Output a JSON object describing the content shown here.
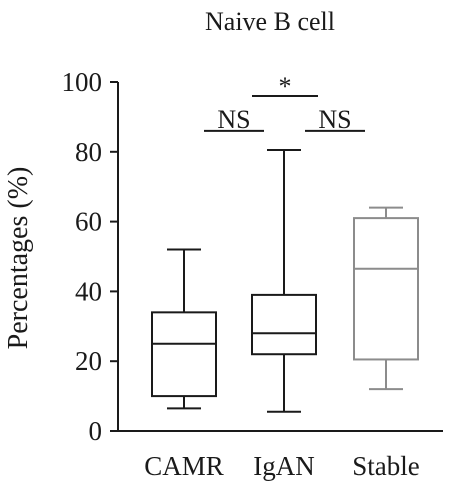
{
  "chart_data": {
    "type": "box",
    "title": "Naive B cell",
    "ylabel": "Percentages (%)",
    "xlabel": "",
    "ylim": [
      0,
      100
    ],
    "yticks": [
      "0",
      "20",
      "40",
      "60",
      "80",
      "100"
    ],
    "grid": false,
    "categories": [
      "CAMR",
      "IgAN",
      "Stable"
    ],
    "boxes": [
      {
        "category": "CAMR",
        "min": 6.5,
        "q1": 10,
        "median": 25,
        "q3": 34,
        "max": 52,
        "color": "#1a1a1a"
      },
      {
        "category": "IgAN",
        "min": 5.5,
        "q1": 22,
        "median": 28,
        "q3": 39,
        "max": 80.5,
        "color": "#1a1a1a"
      },
      {
        "category": "Stable",
        "min": 12,
        "q1": 20.5,
        "median": 46.5,
        "q3": 61,
        "max": 64,
        "color": "#8c8c8c"
      }
    ],
    "significance": [
      {
        "from": "CAMR",
        "to": "IgAN",
        "label": "NS",
        "y": 86
      },
      {
        "from": "CAMR",
        "to": "Stable",
        "label": "*",
        "y": 96
      },
      {
        "from": "IgAN",
        "to": "Stable",
        "label": "NS",
        "y": 86
      }
    ]
  }
}
